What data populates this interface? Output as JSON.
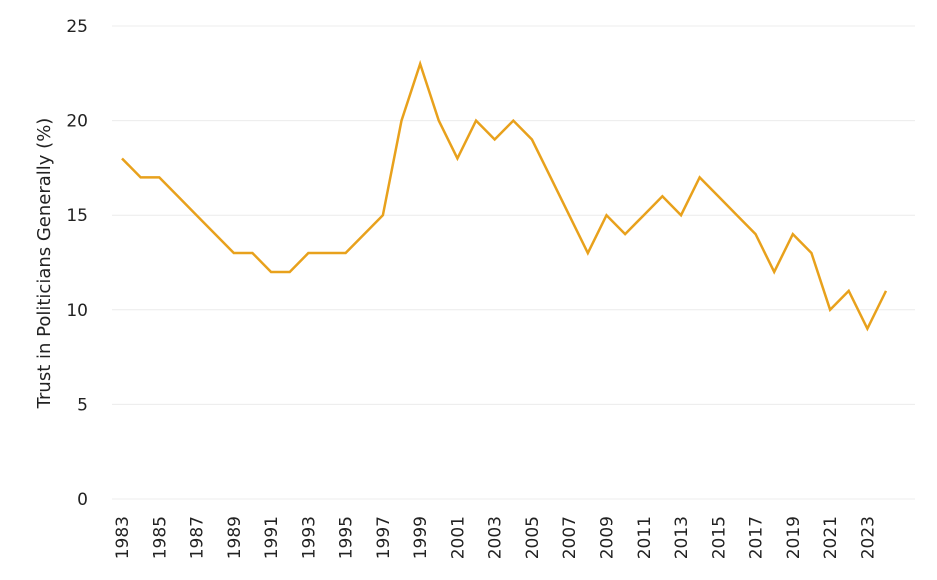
{
  "chart_data": {
    "type": "line",
    "ylabel": "Trust in Politicians Generally (%)",
    "xlabel": "",
    "ylim": [
      0,
      25
    ],
    "yticks": [
      0,
      5,
      10,
      15,
      20,
      25
    ],
    "x_tick_labels": [
      "1983",
      "1985",
      "1987",
      "1989",
      "1991",
      "1993",
      "1995",
      "1997",
      "1999",
      "2001",
      "2003",
      "2005",
      "2007",
      "2009",
      "2011",
      "2013",
      "2015",
      "2017",
      "2019",
      "2021",
      "2023"
    ],
    "grid": true,
    "legend": "none",
    "line_color": "#E8A11C",
    "series": [
      {
        "x": [
          1983,
          1984,
          1985,
          1986,
          1987,
          1988,
          1989,
          1990,
          1991,
          1992,
          1993,
          1994,
          1995,
          1996,
          1997,
          1998,
          1999,
          2000,
          2001,
          2002,
          2003,
          2004,
          2005,
          2006,
          2007,
          2008,
          2009,
          2010,
          2011,
          2012,
          2013,
          2014,
          2015,
          2016,
          2017,
          2018,
          2019,
          2020,
          2021,
          2022,
          2023,
          2024
        ],
        "values": [
          18,
          17,
          17,
          16,
          15,
          14,
          13,
          13,
          12,
          12,
          13,
          13,
          13,
          14,
          15,
          20,
          23,
          20,
          18,
          20,
          19,
          20,
          19,
          17,
          15,
          13,
          15,
          14,
          15,
          16,
          15,
          17,
          16,
          15,
          14,
          12,
          14,
          13,
          10,
          11,
          9,
          11
        ]
      }
    ]
  }
}
